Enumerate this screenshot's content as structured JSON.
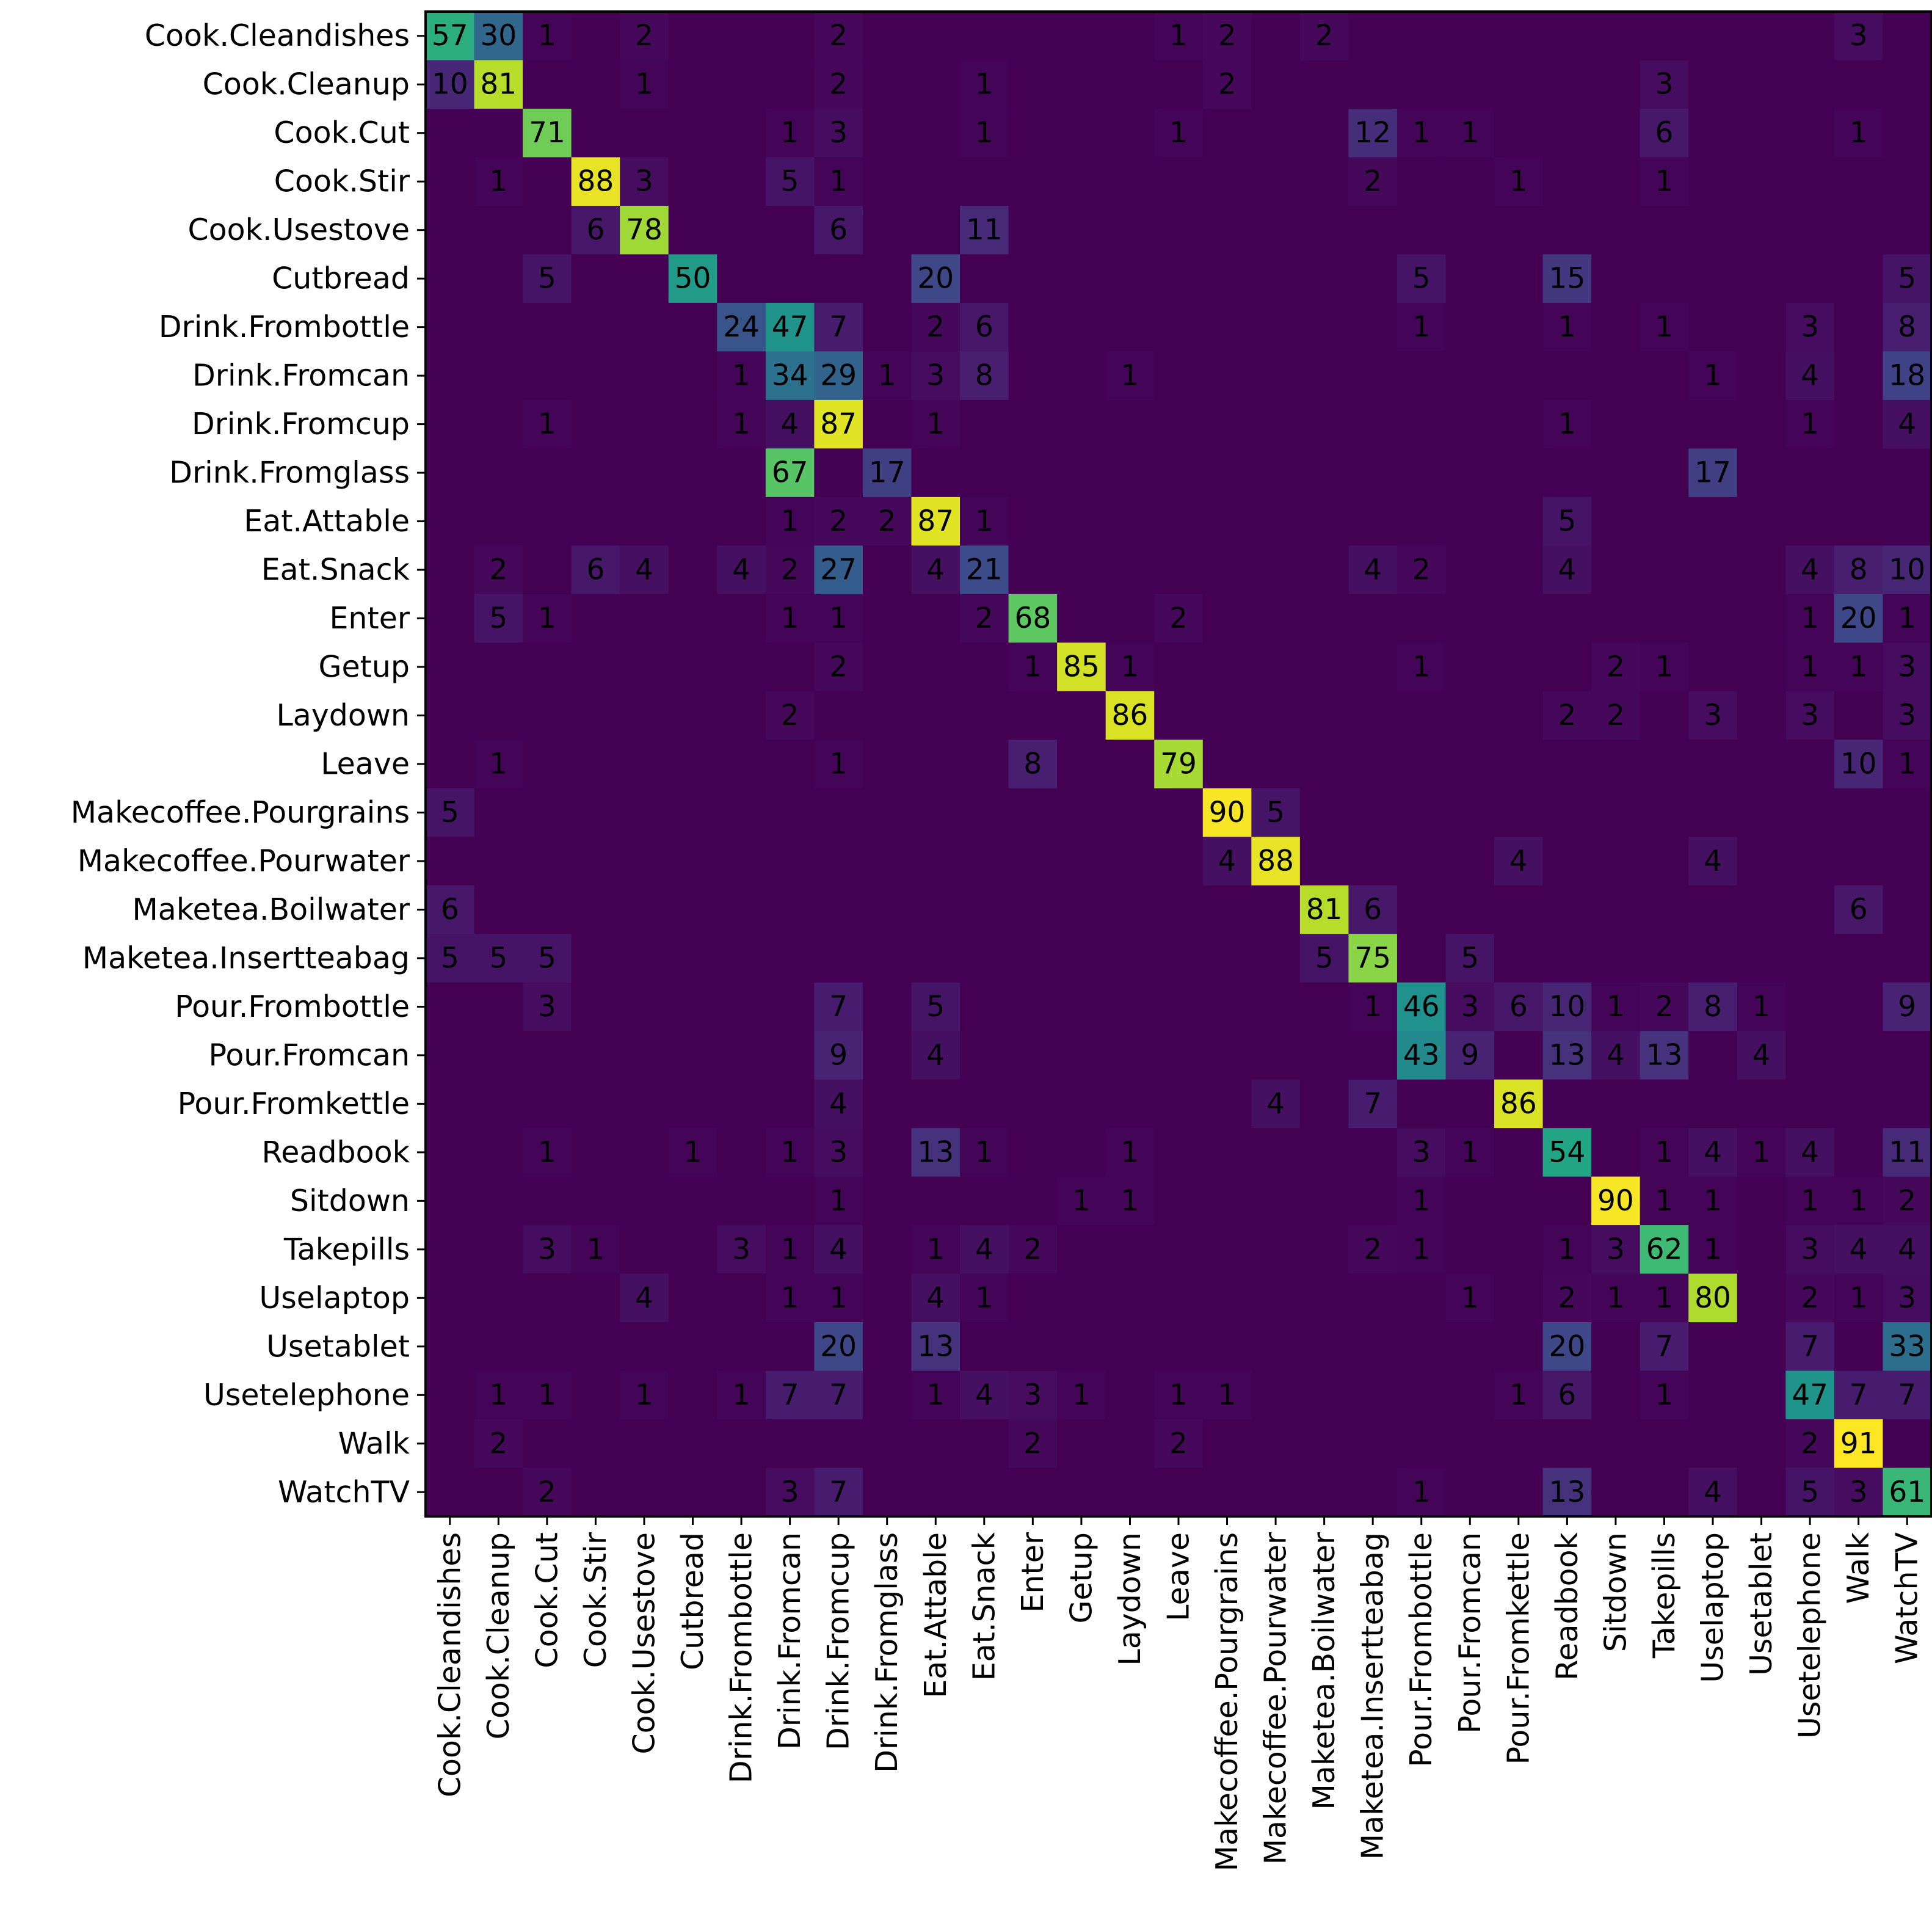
{
  "chart_data": {
    "type": "heatmap",
    "title": "",
    "xlabel": "",
    "ylabel": "",
    "colormap": "viridis",
    "vmin": 0,
    "vmax": 91,
    "grid": false,
    "y_labels": [
      "Cook.Cleandishes",
      "Cook.Cleanup",
      "Cook.Cut",
      "Cook.Stir",
      "Cook.Usestove",
      "Cutbread",
      "Drink.Frombottle",
      "Drink.Fromcan",
      "Drink.Fromcup",
      "Drink.Fromglass",
      "Eat.Attable",
      "Eat.Snack",
      "Enter",
      "Getup",
      "Laydown",
      "Leave",
      "Makecoffee.Pourgrains",
      "Makecoffee.Pourwater",
      "Maketea.Boilwater",
      "Maketea.Insertteabag",
      "Pour.Frombottle",
      "Pour.Fromcan",
      "Pour.Fromkettle",
      "Readbook",
      "Sitdown",
      "Takepills",
      "Uselaptop",
      "Usetablet",
      "Usetelephone",
      "Walk",
      "WatchTV"
    ],
    "x_labels": [
      "Cook.Cleandishes",
      "Cook.Cleanup",
      "Cook.Cut",
      "Cook.Stir",
      "Cook.Usestove",
      "Cutbread",
      "Drink.Frombottle",
      "Drink.Fromcan",
      "Drink.Fromcup",
      "Drink.Fromglass",
      "Eat.Attable",
      "Eat.Snack",
      "Enter",
      "Getup",
      "Laydown",
      "Leave",
      "Makecoffee.Pourgrains",
      "Makecoffee.Pourwater",
      "Maketea.Boilwater",
      "Maketea.Insertteabag",
      "Pour.Frombottle",
      "Pour.Fromcan",
      "Pour.Fromkettle",
      "Readbook",
      "Sitdown",
      "Takepills",
      "Uselaptop",
      "Usetablet",
      "Usetelephone",
      "Walk",
      "WatchTV"
    ],
    "values": [
      [
        57,
        30,
        1,
        0,
        2,
        0,
        0,
        0,
        2,
        0,
        0,
        0,
        0,
        0,
        0,
        1,
        2,
        0,
        2,
        0,
        0,
        0,
        0,
        0,
        0,
        0,
        0,
        0,
        0,
        3,
        0
      ],
      [
        10,
        81,
        0,
        0,
        1,
        0,
        0,
        0,
        2,
        0,
        0,
        1,
        0,
        0,
        0,
        0,
        2,
        0,
        0,
        0,
        0,
        0,
        0,
        0,
        0,
        3,
        0,
        0,
        0,
        0,
        0
      ],
      [
        0,
        0,
        71,
        0,
        0,
        0,
        0,
        1,
        3,
        0,
        0,
        1,
        0,
        0,
        0,
        1,
        0,
        0,
        0,
        12,
        1,
        1,
        0,
        0,
        0,
        6,
        0,
        0,
        0,
        1,
        0
      ],
      [
        0,
        1,
        0,
        88,
        3,
        0,
        0,
        5,
        1,
        0,
        0,
        0,
        0,
        0,
        0,
        0,
        0,
        0,
        0,
        2,
        0,
        0,
        1,
        0,
        0,
        1,
        0,
        0,
        0,
        0,
        0
      ],
      [
        0,
        0,
        0,
        6,
        78,
        0,
        0,
        0,
        6,
        0,
        0,
        11,
        0,
        0,
        0,
        0,
        0,
        0,
        0,
        0,
        0,
        0,
        0,
        0,
        0,
        0,
        0,
        0,
        0,
        0,
        0
      ],
      [
        0,
        0,
        5,
        0,
        0,
        50,
        0,
        0,
        0,
        0,
        20,
        0,
        0,
        0,
        0,
        0,
        0,
        0,
        0,
        0,
        5,
        0,
        0,
        15,
        0,
        0,
        0,
        0,
        0,
        0,
        5
      ],
      [
        0,
        0,
        0,
        0,
        0,
        0,
        24,
        47,
        7,
        0,
        2,
        6,
        0,
        0,
        0,
        0,
        0,
        0,
        0,
        0,
        1,
        0,
        0,
        1,
        0,
        1,
        0,
        0,
        3,
        0,
        8
      ],
      [
        0,
        0,
        0,
        0,
        0,
        0,
        1,
        34,
        29,
        1,
        3,
        8,
        0,
        0,
        1,
        0,
        0,
        0,
        0,
        0,
        0,
        0,
        0,
        0,
        0,
        0,
        1,
        0,
        4,
        0,
        18
      ],
      [
        0,
        0,
        1,
        0,
        0,
        0,
        1,
        4,
        87,
        0,
        1,
        0,
        0,
        0,
        0,
        0,
        0,
        0,
        0,
        0,
        0,
        0,
        0,
        1,
        0,
        0,
        0,
        0,
        1,
        0,
        4
      ],
      [
        0,
        0,
        0,
        0,
        0,
        0,
        0,
        67,
        0,
        17,
        0,
        0,
        0,
        0,
        0,
        0,
        0,
        0,
        0,
        0,
        0,
        0,
        0,
        0,
        0,
        0,
        17,
        0,
        0,
        0,
        0
      ],
      [
        0,
        0,
        0,
        0,
        0,
        0,
        0,
        1,
        2,
        2,
        87,
        1,
        0,
        0,
        0,
        0,
        0,
        0,
        0,
        0,
        0,
        0,
        0,
        5,
        0,
        0,
        0,
        0,
        0,
        0,
        0
      ],
      [
        0,
        2,
        0,
        6,
        4,
        0,
        4,
        2,
        27,
        0,
        4,
        21,
        0,
        0,
        0,
        0,
        0,
        0,
        0,
        4,
        2,
        0,
        0,
        4,
        0,
        0,
        0,
        0,
        4,
        8,
        10
      ],
      [
        0,
        5,
        1,
        0,
        0,
        0,
        0,
        1,
        1,
        0,
        0,
        2,
        68,
        0,
        0,
        2,
        0,
        0,
        0,
        0,
        0,
        0,
        0,
        0,
        0,
        0,
        0,
        0,
        1,
        20,
        1
      ],
      [
        0,
        0,
        0,
        0,
        0,
        0,
        0,
        0,
        2,
        0,
        0,
        0,
        1,
        85,
        1,
        0,
        0,
        0,
        0,
        0,
        1,
        0,
        0,
        0,
        2,
        1,
        0,
        0,
        1,
        1,
        3
      ],
      [
        0,
        0,
        0,
        0,
        0,
        0,
        0,
        2,
        0,
        0,
        0,
        0,
        0,
        0,
        86,
        0,
        0,
        0,
        0,
        0,
        0,
        0,
        0,
        2,
        2,
        0,
        3,
        0,
        3,
        0,
        3
      ],
      [
        0,
        1,
        0,
        0,
        0,
        0,
        0,
        0,
        1,
        0,
        0,
        0,
        8,
        0,
        0,
        79,
        0,
        0,
        0,
        0,
        0,
        0,
        0,
        0,
        0,
        0,
        0,
        0,
        0,
        10,
        1
      ],
      [
        5,
        0,
        0,
        0,
        0,
        0,
        0,
        0,
        0,
        0,
        0,
        0,
        0,
        0,
        0,
        0,
        90,
        5,
        0,
        0,
        0,
        0,
        0,
        0,
        0,
        0,
        0,
        0,
        0,
        0,
        0
      ],
      [
        0,
        0,
        0,
        0,
        0,
        0,
        0,
        0,
        0,
        0,
        0,
        0,
        0,
        0,
        0,
        0,
        4,
        88,
        0,
        0,
        0,
        0,
        4,
        0,
        0,
        0,
        4,
        0,
        0,
        0,
        0
      ],
      [
        6,
        0,
        0,
        0,
        0,
        0,
        0,
        0,
        0,
        0,
        0,
        0,
        0,
        0,
        0,
        0,
        0,
        0,
        81,
        6,
        0,
        0,
        0,
        0,
        0,
        0,
        0,
        0,
        0,
        6,
        0
      ],
      [
        5,
        5,
        5,
        0,
        0,
        0,
        0,
        0,
        0,
        0,
        0,
        0,
        0,
        0,
        0,
        0,
        0,
        0,
        5,
        75,
        0,
        5,
        0,
        0,
        0,
        0,
        0,
        0,
        0,
        0,
        0
      ],
      [
        0,
        0,
        3,
        0,
        0,
        0,
        0,
        0,
        7,
        0,
        5,
        0,
        0,
        0,
        0,
        0,
        0,
        0,
        0,
        1,
        46,
        3,
        6,
        10,
        1,
        2,
        8,
        1,
        0,
        0,
        9
      ],
      [
        0,
        0,
        0,
        0,
        0,
        0,
        0,
        0,
        9,
        0,
        4,
        0,
        0,
        0,
        0,
        0,
        0,
        0,
        0,
        0,
        43,
        9,
        0,
        13,
        4,
        13,
        0,
        4,
        0,
        0,
        0
      ],
      [
        0,
        0,
        0,
        0,
        0,
        0,
        0,
        0,
        4,
        0,
        0,
        0,
        0,
        0,
        0,
        0,
        0,
        4,
        0,
        7,
        0,
        0,
        86,
        0,
        0,
        0,
        0,
        0,
        0,
        0,
        0
      ],
      [
        0,
        0,
        1,
        0,
        0,
        1,
        0,
        1,
        3,
        0,
        13,
        1,
        0,
        0,
        1,
        0,
        0,
        0,
        0,
        0,
        3,
        1,
        0,
        54,
        0,
        1,
        4,
        1,
        4,
        0,
        11
      ],
      [
        0,
        0,
        0,
        0,
        0,
        0,
        0,
        0,
        1,
        0,
        0,
        0,
        0,
        1,
        1,
        0,
        0,
        0,
        0,
        0,
        1,
        0,
        0,
        0,
        90,
        1,
        1,
        0,
        1,
        1,
        2
      ],
      [
        0,
        0,
        3,
        1,
        0,
        0,
        3,
        1,
        4,
        0,
        1,
        4,
        2,
        0,
        0,
        0,
        0,
        0,
        0,
        2,
        1,
        0,
        0,
        1,
        3,
        62,
        1,
        0,
        3,
        4,
        4
      ],
      [
        0,
        0,
        0,
        0,
        4,
        0,
        0,
        1,
        1,
        0,
        4,
        1,
        0,
        0,
        0,
        0,
        0,
        0,
        0,
        0,
        0,
        1,
        0,
        2,
        1,
        1,
        80,
        0,
        2,
        1,
        3
      ],
      [
        0,
        0,
        0,
        0,
        0,
        0,
        0,
        0,
        20,
        0,
        13,
        0,
        0,
        0,
        0,
        0,
        0,
        0,
        0,
        0,
        0,
        0,
        0,
        20,
        0,
        7,
        0,
        0,
        7,
        0,
        33
      ],
      [
        0,
        1,
        1,
        0,
        1,
        0,
        1,
        7,
        7,
        0,
        1,
        4,
        3,
        1,
        0,
        1,
        1,
        0,
        0,
        0,
        0,
        0,
        1,
        6,
        0,
        1,
        0,
        0,
        47,
        7,
        7
      ],
      [
        0,
        2,
        0,
        0,
        0,
        0,
        0,
        0,
        0,
        0,
        0,
        0,
        2,
        0,
        0,
        2,
        0,
        0,
        0,
        0,
        0,
        0,
        0,
        0,
        0,
        0,
        0,
        0,
        2,
        91,
        0
      ],
      [
        0,
        0,
        2,
        0,
        0,
        0,
        0,
        3,
        7,
        0,
        0,
        0,
        0,
        0,
        0,
        0,
        0,
        0,
        0,
        0,
        1,
        0,
        0,
        13,
        0,
        0,
        4,
        0,
        5,
        3,
        61
      ]
    ]
  }
}
